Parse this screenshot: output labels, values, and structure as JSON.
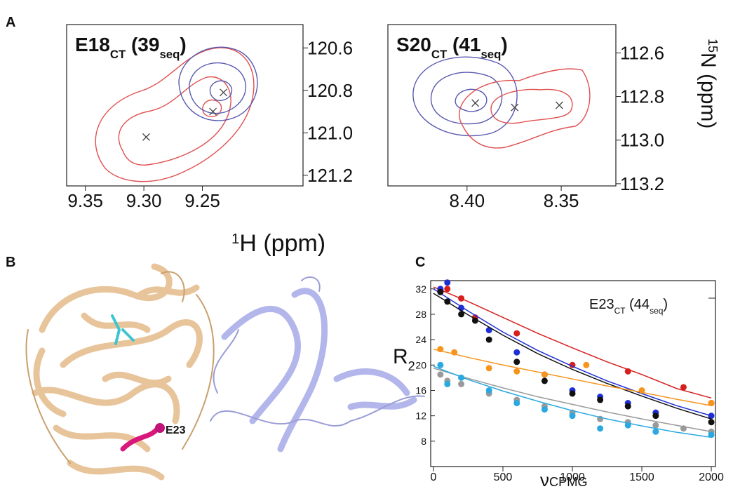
{
  "panel_labels": [
    "A",
    "B",
    "C"
  ],
  "shared_xlabel": [
    {
      "text": "1",
      "script": "sup"
    },
    {
      "text": "H (ppm)"
    }
  ],
  "structure_label": "E23",
  "chart_data": [
    {
      "type": "contour",
      "title": [
        {
          "text": "E18"
        },
        {
          "text": "CT",
          "script": "sub"
        },
        {
          "text": " (39"
        },
        {
          "text": "seq",
          "script": "sub"
        },
        {
          "text": ")"
        }
      ],
      "peaks": {
        "x": [
          9.298,
          9.241,
          9.232
        ],
        "y": [
          121.02,
          120.9,
          120.81
        ]
      },
      "xlim": [
        9.366,
        9.164
      ],
      "ylim": [
        121.25,
        120.49
      ],
      "xticks": [
        {
          "value": 9.35,
          "label": "9.35"
        },
        {
          "value": 9.3,
          "label": "9.30"
        },
        {
          "value": 9.25,
          "label": "9.25"
        }
      ],
      "yticks": [
        {
          "value": 120.6,
          "label": "120.6"
        },
        {
          "value": 120.8,
          "label": "120.8"
        },
        {
          "value": 121,
          "label": "121.0"
        },
        {
          "value": 121.2,
          "label": "121.2"
        }
      ]
    },
    {
      "type": "contour",
      "title": [
        {
          "text": "S20"
        },
        {
          "text": "CT",
          "script": "sub"
        },
        {
          "text": " (41"
        },
        {
          "text": "seq",
          "script": "sub"
        },
        {
          "text": ")"
        }
      ],
      "ylabel": [
        {
          "text": "15",
          "script": "sup"
        },
        {
          "text": "N (ppm)"
        }
      ],
      "peaks": {
        "x": [
          8.3956,
          8.3747,
          8.351
        ],
        "y": [
          112.83,
          112.85,
          112.84
        ]
      },
      "xlim": [
        8.442,
        8.321
      ],
      "ylim": [
        113.21,
        112.47
      ],
      "xticks": [
        {
          "value": 8.4,
          "label": "8.40"
        },
        {
          "value": 8.35,
          "label": "8.35"
        }
      ],
      "yticks": [
        {
          "value": 112.6,
          "label": "112.6"
        },
        {
          "value": 112.8,
          "label": "112.8"
        },
        {
          "value": 113,
          "label": "113.0"
        },
        {
          "value": 113.2,
          "label": "113.2"
        }
      ]
    },
    {
      "type": "scatter",
      "annotation": [
        {
          "text": "E23"
        },
        {
          "text": "CT",
          "script": "sub"
        },
        {
          "text": " (44"
        },
        {
          "text": "seq",
          "script": "sub"
        },
        {
          "text": ")"
        }
      ],
      "ylabel": [
        {
          "text": "R"
        },
        {
          "text": "2",
          "script": "sub"
        }
      ],
      "xlabel": [
        {
          "text": "ν"
        },
        {
          "text": "CPMG",
          "script": "small"
        }
      ],
      "xlim": [
        -20,
        2030
      ],
      "ylim": [
        4,
        33.3
      ],
      "xticks": [
        0,
        500,
        1000,
        1500,
        2000
      ],
      "yticks": [
        8,
        12,
        16,
        20,
        24,
        28,
        32
      ],
      "fit_x": [
        0,
        250,
        500,
        750,
        1000,
        1250,
        1500,
        1750,
        2000
      ],
      "series": [
        {
          "color": "#d62020",
          "x": [
            50,
            100,
            200,
            300,
            600,
            1000,
            1400,
            1800,
            2000
          ],
          "values": [
            31.8,
            32,
            30.5,
            27.5,
            25,
            20,
            19,
            16.5,
            14
          ],
          "fit": [
            32.3,
            30,
            27.5,
            25,
            22.7,
            20.5,
            18.5,
            16.3,
            14.8
          ]
        },
        {
          "color": "#1f2fd6",
          "x": [
            50,
            100,
            200,
            400,
            600,
            800,
            1000,
            1200,
            1400,
            1600,
            2000
          ],
          "values": [
            32,
            33,
            29,
            25.5,
            22,
            18.5,
            16,
            15,
            14,
            12.5,
            12
          ],
          "fit": [
            32,
            28.5,
            25.2,
            22.3,
            19.8,
            17.5,
            15.5,
            13.6,
            12
          ]
        },
        {
          "color": "#111111",
          "x": [
            50,
            100,
            200,
            300,
            400,
            600,
            800,
            1000,
            1200,
            1400,
            1600,
            2000
          ],
          "values": [
            31.5,
            30,
            28,
            27,
            24,
            20.5,
            17.5,
            15.5,
            14.5,
            13.5,
            12,
            11
          ],
          "fit": [
            31.3,
            27.9,
            24.7,
            21.8,
            19.3,
            17.1,
            15.1,
            13.2,
            11.5
          ]
        },
        {
          "color": "#f7941d",
          "x": [
            50,
            150,
            400,
            600,
            800,
            1100,
            1500,
            2000
          ],
          "values": [
            22.5,
            22,
            19.5,
            19,
            18.5,
            20,
            16,
            14
          ],
          "fit": [
            22.5,
            21.2,
            20,
            18.9,
            17.8,
            16.7,
            15.7,
            14.6,
            13.6
          ]
        },
        {
          "color": "#9a9a9a",
          "x": [
            50,
            100,
            200,
            400,
            600,
            800,
            1000,
            1200,
            1400,
            1600,
            1800,
            2000
          ],
          "values": [
            18.5,
            17.5,
            17,
            15.5,
            14.5,
            13.5,
            12.5,
            11.5,
            11,
            10.5,
            10,
            9.5
          ],
          "fit": [
            19.5,
            17.9,
            16.4,
            15,
            13.8,
            12.6,
            11.5,
            10.5,
            9.5
          ]
        },
        {
          "color": "#29a9e0",
          "x": [
            50,
            100,
            200,
            400,
            600,
            800,
            1000,
            1200,
            1400,
            1600,
            2000
          ],
          "values": [
            20,
            17,
            18,
            16,
            14,
            13,
            12,
            10,
            10.5,
            9.5,
            9
          ],
          "fit": [
            19.8,
            17.7,
            15.9,
            14.3,
            12.8,
            11.5,
            10.4,
            9.4,
            8.6
          ]
        }
      ]
    }
  ]
}
